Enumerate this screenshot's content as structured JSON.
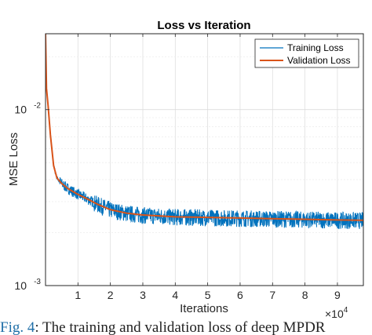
{
  "chart_data": {
    "type": "line",
    "title": "Loss vs Iteration",
    "xlabel": "Iterations",
    "ylabel": "MSE Loss",
    "x_multiplier": "×10",
    "x_multiplier_exp": "4",
    "xlim": [
      0,
      98000
    ],
    "ylim": [
      0.001,
      0.027
    ],
    "yscale": "log",
    "grid": true,
    "legend_position": "top-right",
    "x_ticks": [
      {
        "value": 10000,
        "label": "1"
      },
      {
        "value": 20000,
        "label": "2"
      },
      {
        "value": 30000,
        "label": "3"
      },
      {
        "value": 40000,
        "label": "4"
      },
      {
        "value": 50000,
        "label": "5"
      },
      {
        "value": 60000,
        "label": "6"
      },
      {
        "value": 70000,
        "label": "7"
      },
      {
        "value": 80000,
        "label": "8"
      },
      {
        "value": 90000,
        "label": "9"
      }
    ],
    "y_ticks": [
      {
        "value": 0.01,
        "base": "10",
        "exp": "-2"
      },
      {
        "value": 0.001,
        "base": "10",
        "exp": "-3"
      }
    ],
    "series": [
      {
        "name": "Training Loss",
        "color": "#0072bd",
        "x": [
          0,
          300,
          800,
          1500,
          2500,
          3500,
          5000,
          7000,
          10000,
          13000,
          16000,
          20000,
          25000,
          30000,
          40000,
          50000,
          60000,
          70000,
          80000,
          90000,
          98000
        ],
        "y": [
          0.027,
          0.0132,
          0.0105,
          0.0072,
          0.0048,
          0.0041,
          0.0038,
          0.00355,
          0.0033,
          0.0031,
          0.0029,
          0.0027,
          0.00258,
          0.00252,
          0.00246,
          0.00244,
          0.00242,
          0.0024,
          0.00238,
          0.00236,
          0.00235
        ],
        "noise_band": [
          0.00205,
          0.0029
        ]
      },
      {
        "name": "Validation Loss",
        "color": "#d95319",
        "x": [
          0,
          300,
          800,
          1500,
          2500,
          3500,
          5000,
          7000,
          10000,
          13000,
          16000,
          20000,
          25000,
          30000,
          40000,
          50000,
          60000,
          70000,
          80000,
          90000,
          98000
        ],
        "y": [
          0.027,
          0.0132,
          0.0105,
          0.0072,
          0.0048,
          0.0041,
          0.0038,
          0.00355,
          0.0033,
          0.0031,
          0.0029,
          0.0027,
          0.00258,
          0.00252,
          0.00246,
          0.00244,
          0.00242,
          0.0024,
          0.00238,
          0.00236,
          0.00235
        ]
      }
    ]
  },
  "caption": {
    "fig_label": "Fig. 4",
    "text": ": The training and validation loss of deep MPDR"
  }
}
